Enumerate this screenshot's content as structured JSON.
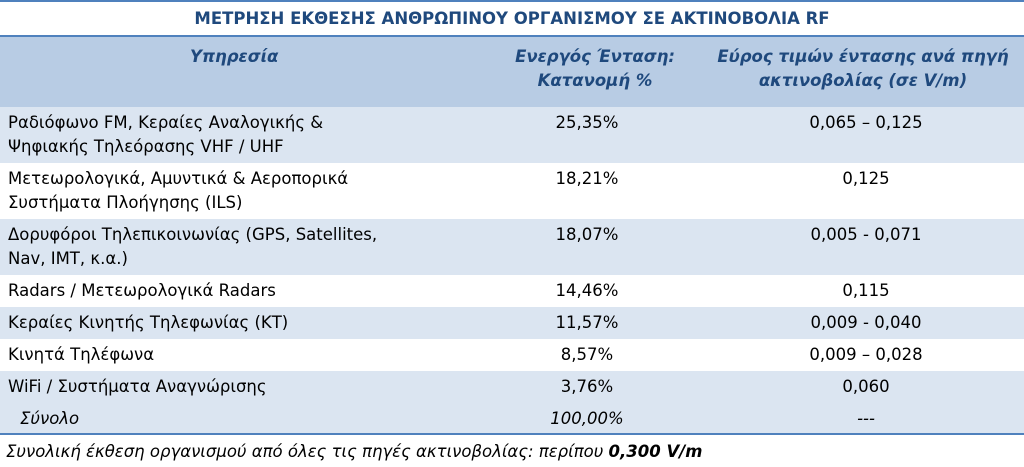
{
  "title": "ΜΕΤΡΗΣΗ ΕΚΘΕΣΗΣ ΑΝΘΡΩΠΙΝΟΥ ΟΡΓΑΝΙΣΜΟΥ ΣΕ ΑΚΤΙΝΟΒΟΛΙΑ RF",
  "headers": {
    "service": "Υπηρεσία",
    "share_line1": "Ενεργός Ένταση:",
    "share_line2": "Κατανομή %",
    "range_line1": "Εύρος τιμών έντασης ανά πηγή",
    "range_line2": "ακτινοβολίας (σε V/m)"
  },
  "rows": [
    {
      "service_line1": "Ραδιόφωνο FM, Κεραίες Αναλογικής &",
      "service_line2": "Ψηφιακής Τηλεόρασης VHF / UHF",
      "share": "25,35%",
      "range": "0,065 – 0,125"
    },
    {
      "service_line1": "Μετεωρολογικά, Αμυντικά & Αεροπορικά",
      "service_line2": "Συστήματα Πλοήγησης (ILS)",
      "share": "18,21%",
      "range": "0,125"
    },
    {
      "service_line1": "Δορυφόροι Τηλεπικοινωνίας (GPS, Satellites,",
      "service_line2": "Nav, IMT, κ.α.)",
      "share": "18,07%",
      "range": "0,005 - 0,071"
    },
    {
      "service_line1": "Radars / Μετεωρολογικά Radars",
      "service_line2": "",
      "share": "14,46%",
      "range": "0,115"
    },
    {
      "service_line1": "Κεραίες Κινητής Τηλεφωνίας (ΚΤ)",
      "service_line2": "",
      "share": "11,57%",
      "range": "0,009 - 0,040"
    },
    {
      "service_line1": "Κινητά Τηλέφωνα",
      "service_line2": "",
      "share": "8,57%",
      "range": "0,009 – 0,028"
    },
    {
      "service_line1": "WiFi / Συστήματα Αναγνώρισης",
      "service_line2": "",
      "share": "3,76%",
      "range": "0,060"
    }
  ],
  "total": {
    "label": "Σύνολο",
    "share": "100,00%",
    "range": "---"
  },
  "note": {
    "text": "Συνολική έκθεση οργανισμού από όλες τις πηγές ακτινοβολίας: περίπου ",
    "value": "0,300 V/m"
  },
  "colors": {
    "title_text": "#1f497d",
    "rule": "#4f81bd",
    "header_fill": "#b8cce4",
    "band_fill": "#dbe5f1"
  }
}
